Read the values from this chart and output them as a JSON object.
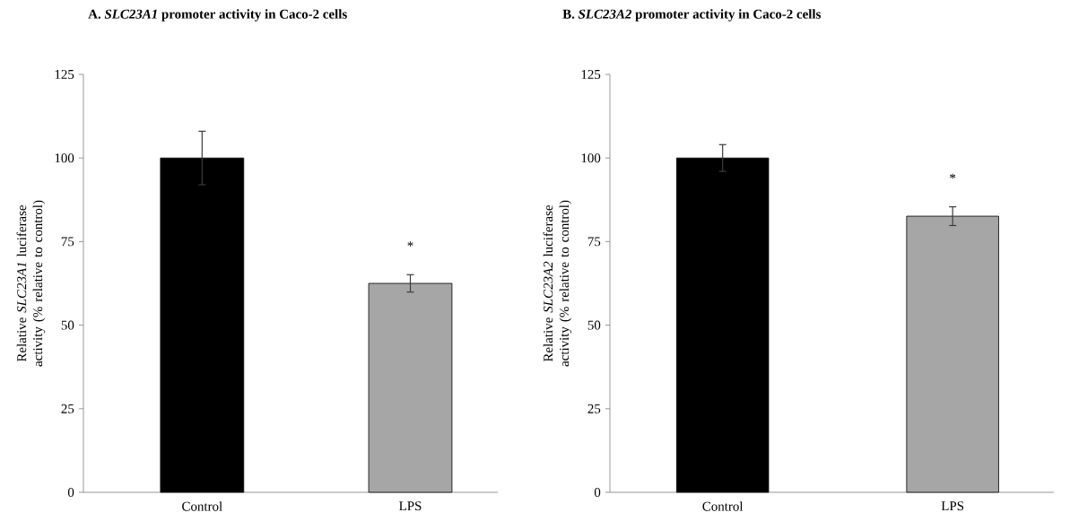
{
  "chart_data": [
    {
      "type": "bar",
      "title": "A. *SLC23A1* promoter activity in  Caco-2 cells",
      "ylabel": "Relative *SLC23A1* luciferase activity (% relative to control)",
      "categories": [
        "Control",
        "LPS"
      ],
      "values": [
        100,
        62.5
      ],
      "errors": [
        8,
        2.6
      ],
      "colors": [
        "#000000",
        "#a6a6a6"
      ],
      "ylim": [
        0,
        125
      ],
      "yticks": [
        0,
        25,
        50,
        75,
        100,
        125
      ],
      "annotations": [
        "*"
      ]
    },
    {
      "type": "bar",
      "title": "B. *SLC23A2* promoter activity in Caco-2 cells",
      "ylabel": "Relative *SLC23A2* luciferase activity (% relative to control)",
      "categories": [
        "Control",
        "LPS"
      ],
      "values": [
        100,
        82.6
      ],
      "errors": [
        4,
        2.8
      ],
      "colors": [
        "#000000",
        "#a6a6a6"
      ],
      "ylim": [
        0,
        125
      ],
      "yticks": [
        0,
        25,
        50,
        75,
        100,
        125
      ],
      "annotations": [
        "*"
      ]
    }
  ]
}
